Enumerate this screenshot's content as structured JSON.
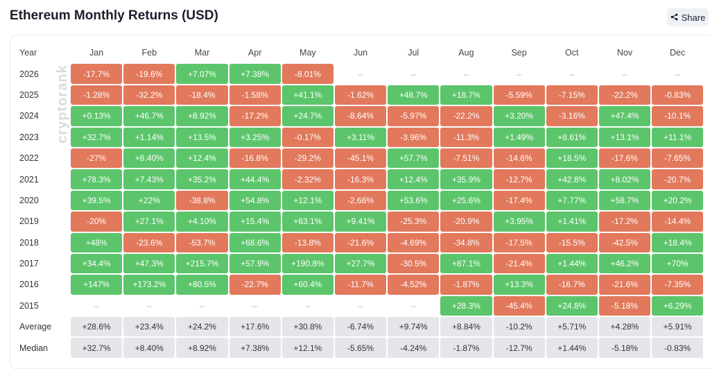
{
  "title": "Ethereum Monthly Returns (USD)",
  "share_label": "Share",
  "watermark": "cryptorank",
  "colors": {
    "positive": "#5cc56b",
    "negative": "#e2795c",
    "stat": "#e4e6ea"
  },
  "header": [
    "Year",
    "Jan",
    "Feb",
    "Mar",
    "Apr",
    "May",
    "Jun",
    "Jul",
    "Aug",
    "Sep",
    "Oct",
    "Nov",
    "Dec"
  ],
  "rows": [
    {
      "label": "2026",
      "cells": [
        "-17.7%",
        "-19.6%",
        "+7.07%",
        "+7.38%",
        "-8.01%",
        "–",
        "–",
        "–",
        "–",
        "–",
        "–",
        "–"
      ]
    },
    {
      "label": "2025",
      "cells": [
        "-1.28%",
        "-32.2%",
        "-18.4%",
        "-1.58%",
        "+41.1%",
        "-1.62%",
        "+48.7%",
        "+18.7%",
        "-5.59%",
        "-7.15%",
        "-22.2%",
        "-0.83%"
      ]
    },
    {
      "label": "2024",
      "cells": [
        "+0.13%",
        "+46.7%",
        "+8.92%",
        "-17.2%",
        "+24.7%",
        "-8.64%",
        "-5.97%",
        "-22.2%",
        "+3.20%",
        "-3.16%",
        "+47.4%",
        "-10.1%"
      ]
    },
    {
      "label": "2023",
      "cells": [
        "+32.7%",
        "+1.14%",
        "+13.5%",
        "+3.25%",
        "-0.17%",
        "+3.11%",
        "-3.96%",
        "-11.3%",
        "+1.49%",
        "+8.61%",
        "+13.1%",
        "+11.1%"
      ]
    },
    {
      "label": "2022",
      "cells": [
        "-27%",
        "+8.40%",
        "+12.4%",
        "-16.8%",
        "-29.2%",
        "-45.1%",
        "+57.7%",
        "-7.51%",
        "-14.6%",
        "+18.5%",
        "-17.6%",
        "-7.65%"
      ]
    },
    {
      "label": "2021",
      "cells": [
        "+78.3%",
        "+7.43%",
        "+35.2%",
        "+44.4%",
        "-2.32%",
        "-16.3%",
        "+12.4%",
        "+35.9%",
        "-12.7%",
        "+42.8%",
        "+8.02%",
        "-20.7%"
      ]
    },
    {
      "label": "2020",
      "cells": [
        "+39.5%",
        "+22%",
        "-38.8%",
        "+54.8%",
        "+12.1%",
        "-2.66%",
        "+53.6%",
        "+25.6%",
        "-17.4%",
        "+7.77%",
        "+58.7%",
        "+20.2%"
      ]
    },
    {
      "label": "2019",
      "cells": [
        "-20%",
        "+27.1%",
        "+4.10%",
        "+15.4%",
        "+63.1%",
        "+9.41%",
        "-25.3%",
        "-20.9%",
        "+3.95%",
        "+1.41%",
        "-17.2%",
        "-14.4%"
      ]
    },
    {
      "label": "2018",
      "cells": [
        "+48%",
        "-23.6%",
        "-53.7%",
        "+68.6%",
        "-13.8%",
        "-21.6%",
        "-4.69%",
        "-34.8%",
        "-17.5%",
        "-15.5%",
        "-42.5%",
        "+18.4%"
      ]
    },
    {
      "label": "2017",
      "cells": [
        "+34.4%",
        "+47.3%",
        "+215.7%",
        "+57.9%",
        "+190.8%",
        "+27.7%",
        "-30.5%",
        "+87.1%",
        "-21.4%",
        "+1.44%",
        "+46.2%",
        "+70%"
      ]
    },
    {
      "label": "2016",
      "cells": [
        "+147%",
        "+173.2%",
        "+80.5%",
        "-22.7%",
        "+60.4%",
        "-11.7%",
        "-4.52%",
        "-1.87%",
        "+13.3%",
        "-16.7%",
        "-21.6%",
        "-7.35%"
      ]
    },
    {
      "label": "2015",
      "cells": [
        "–",
        "–",
        "–",
        "–",
        "–",
        "–",
        "–",
        "+28.3%",
        "-45.4%",
        "+24.8%",
        "-5.18%",
        "+6.29%"
      ]
    },
    {
      "label": "Average",
      "stat": true,
      "cells": [
        "+28.6%",
        "+23.4%",
        "+24.2%",
        "+17.6%",
        "+30.8%",
        "-6.74%",
        "+9.74%",
        "+8.84%",
        "-10.2%",
        "+5.71%",
        "+4.28%",
        "+5.91%"
      ]
    },
    {
      "label": "Median",
      "stat": true,
      "cells": [
        "+32.7%",
        "+8.40%",
        "+8.92%",
        "+7.38%",
        "+12.1%",
        "-5.65%",
        "-4.24%",
        "-1.87%",
        "-12.7%",
        "+1.44%",
        "-5.18%",
        "-0.83%"
      ]
    }
  ]
}
